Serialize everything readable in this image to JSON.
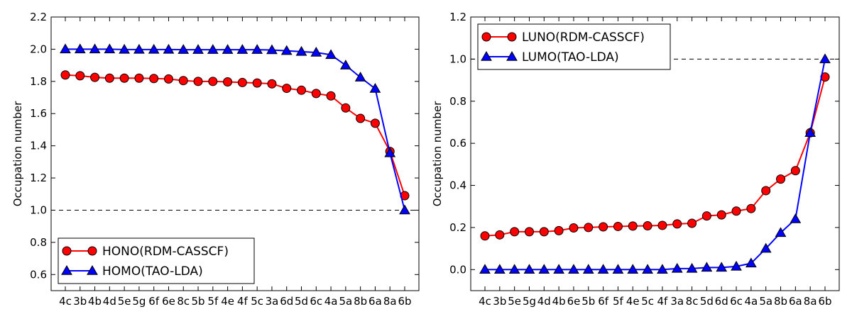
{
  "chart_data": [
    {
      "type": "line",
      "title": "",
      "xlabel": "",
      "ylabel": "Occupation number",
      "ylim": [
        0.5,
        2.2
      ],
      "yticks": [
        0.6,
        0.8,
        1.0,
        1.2,
        1.4,
        1.6,
        1.8,
        2.0,
        2.2
      ],
      "ytick_labels": [
        "0.6",
        "0.8",
        "1.0",
        "1.2",
        "1.4",
        "1.6",
        "1.8",
        "2.0",
        "2.2"
      ],
      "categories": [
        "4c",
        "3b",
        "4b",
        "4d",
        "5e",
        "5g",
        "6f",
        "6e",
        "8c",
        "5b",
        "5f",
        "4e",
        "4f",
        "5c",
        "3a",
        "6d",
        "5d",
        "6c",
        "4a",
        "5a",
        "8b",
        "6a",
        "8a",
        "6b"
      ],
      "reference_line": 1.0,
      "legend_position": "bottom-left",
      "series": [
        {
          "name": "HONO(RDM-CASSCF)",
          "color": "#ff0000",
          "marker": "circle",
          "values": [
            1.84,
            1.835,
            1.825,
            1.82,
            1.82,
            1.82,
            1.818,
            1.815,
            1.805,
            1.8,
            1.8,
            1.797,
            1.793,
            1.79,
            1.785,
            1.757,
            1.745,
            1.725,
            1.71,
            1.635,
            1.57,
            1.54,
            1.365,
            1.09
          ]
        },
        {
          "name": "HOMO(TAO-LDA)",
          "color": "#0000ff",
          "marker": "triangle",
          "values": [
            2.0,
            2.0,
            2.0,
            2.0,
            1.998,
            1.998,
            1.998,
            1.998,
            1.997,
            1.997,
            1.997,
            1.997,
            1.997,
            1.997,
            1.995,
            1.99,
            1.985,
            1.98,
            1.965,
            1.9,
            1.825,
            1.755,
            1.355,
            1.0
          ]
        }
      ]
    },
    {
      "type": "line",
      "title": "",
      "xlabel": "",
      "ylabel": "Occupation number",
      "ylim": [
        -0.1,
        1.2
      ],
      "yticks": [
        0.0,
        0.2,
        0.4,
        0.6,
        0.8,
        1.0,
        1.2
      ],
      "ytick_labels": [
        "0.0",
        "0.2",
        "0.4",
        "0.6",
        "0.8",
        "1.0",
        "1.2"
      ],
      "categories": [
        "4c",
        "3b",
        "5e",
        "5g",
        "4d",
        "4b",
        "6e",
        "5b",
        "6f",
        "5f",
        "4e",
        "5c",
        "4f",
        "3a",
        "8c",
        "5d",
        "6d",
        "6c",
        "4a",
        "5a",
        "8b",
        "6a",
        "8a",
        "6b"
      ],
      "reference_line": 1.0,
      "legend_position": "top-left",
      "series": [
        {
          "name": "LUNO(RDM-CASSCF)",
          "color": "#ff0000",
          "marker": "circle",
          "values": [
            0.16,
            0.165,
            0.18,
            0.18,
            0.18,
            0.185,
            0.198,
            0.2,
            0.203,
            0.205,
            0.207,
            0.208,
            0.21,
            0.217,
            0.22,
            0.255,
            0.26,
            0.278,
            0.29,
            0.375,
            0.43,
            0.47,
            0.65,
            0.915
          ]
        },
        {
          "name": "LUMO(TAO-LDA)",
          "color": "#0000ff",
          "marker": "triangle",
          "values": [
            0.0,
            0.0,
            0.0,
            0.0,
            0.0,
            0.0,
            0.0,
            0.0,
            0.0,
            0.0,
            0.0,
            0.0,
            0.0,
            0.005,
            0.005,
            0.01,
            0.01,
            0.015,
            0.03,
            0.1,
            0.175,
            0.24,
            0.65,
            1.0
          ]
        }
      ]
    }
  ]
}
